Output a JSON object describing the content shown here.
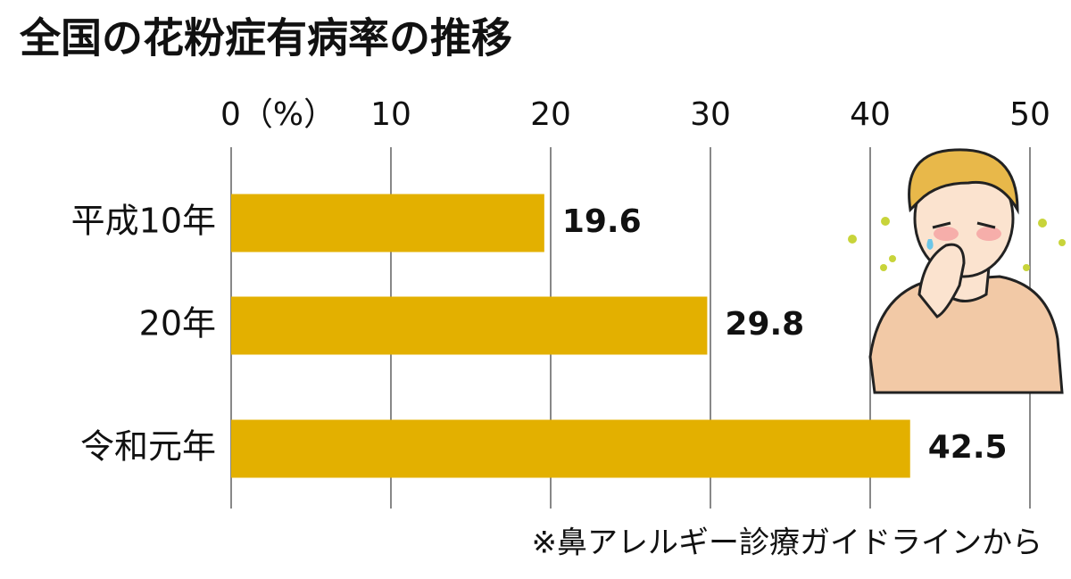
{
  "chart_data": {
    "type": "bar",
    "orientation": "horizontal",
    "title": "全国の花粉症有病率の推移",
    "categories": [
      "平成10年",
      "20年",
      "令和元年"
    ],
    "values": [
      19.6,
      29.8,
      42.5
    ],
    "color": "#e3b000",
    "xlim": [
      0,
      50
    ],
    "xticks": [
      {
        "value": 0,
        "label": "0（%）"
      },
      10,
      20,
      30,
      40,
      50
    ],
    "grid": true,
    "note": "※鼻アレルギー診療ガイドラインから"
  }
}
